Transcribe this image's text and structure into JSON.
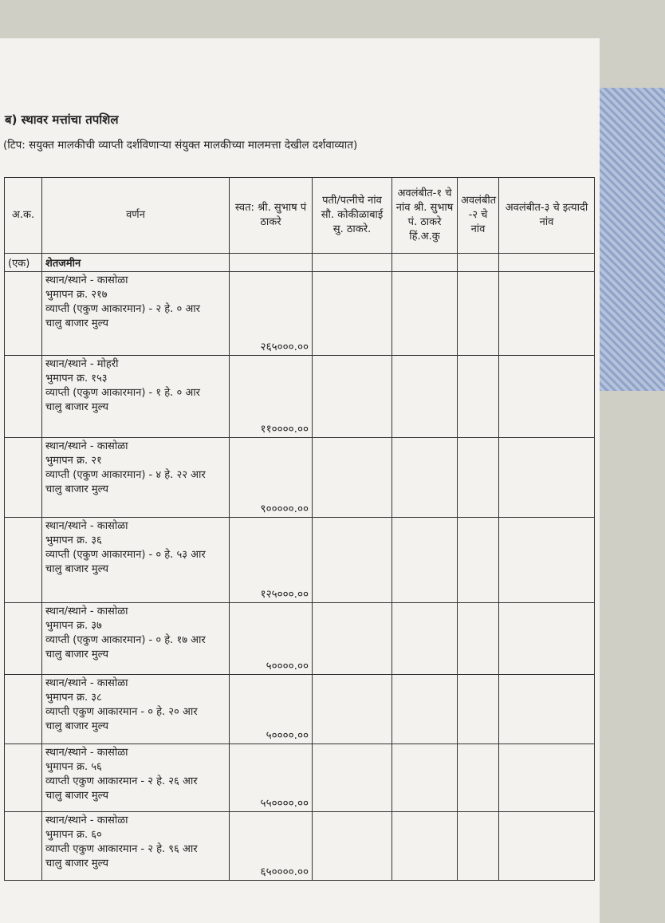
{
  "header": {
    "marker": "ब)",
    "title": "स्थावर मत्तांचा तपशिल",
    "note": "(टिप: सयुक्त मालकीची व्याप्ती दर्शविणाऱ्या संयुक्त मालकीच्या मालमत्ता देखील दर्शवाव्यात)"
  },
  "table": {
    "columns": [
      "अ.क.",
      "वर्णन",
      "स्वत: श्री. सुभाष पं ठाकरे",
      "पती/पत्नीचे नांव सौ. कोकीळाबाई सु. ठाकरे.",
      "अवलंबीत-१ चे नांव श्री. सुभाष पं. ठाकरे हिं.अ.कु",
      "अवलंबीत -२ चे नांव",
      "अवलंबीत-३ चे इत्यादी नांव"
    ],
    "section": {
      "number": "(एक)",
      "name": "शेतजमीन"
    },
    "rows": [
      {
        "lines": [
          "स्थान/स्थाने - कासोळा",
          "भुमापन क्र. २१७",
          "व्याप्ती (एकुण आकारमान) - २ हे. ० आर",
          "चालु बाजार मुल्य"
        ],
        "value": "२६५०००.००"
      },
      {
        "lines": [
          "स्थान/स्थाने - मोहरी",
          "भुमापन क्र. १५३",
          "व्याप्ती (एकुण आकारमान) - १ हे. ० आर",
          "चालु बाजार मुल्य"
        ],
        "value": "११००००.००"
      },
      {
        "lines": [
          "स्थान/स्थाने - कासोळा",
          "भुमापन क्र. २१",
          "व्याप्ती (एकुण आकारमान) - ४ हे. २२ आर",
          "चालु बाजार मुल्य"
        ],
        "value": "९०००००.००"
      },
      {
        "lines": [
          "स्थान/स्थाने - कासोळा",
          "भुमापन क्र. ३६",
          "व्याप्ती (एकुण आकारमान) - ० हे. ५३ आर",
          "चालु बाजार मुल्य"
        ],
        "value": "१२५०००.००"
      },
      {
        "lines": [
          "स्थान/स्थाने - कासोळा",
          "भुमापन क्र. ३७",
          "व्याप्ती (एकुण आकारमान) - ० हे. १७ आर",
          "चालु बाजार मुल्य"
        ],
        "value": "५००००.००"
      },
      {
        "lines": [
          "स्थान/स्थाने - कासोळा",
          "भुमापन क्र. ३८",
          "व्याप्ती एकुण आकारमान - ० हे. २० आर",
          "चालु बाजार मुल्य"
        ],
        "value": "५००००.००"
      },
      {
        "lines": [
          "स्थान/स्थाने - कासोळा",
          "भुमापन क्र. ५६",
          "व्याप्ती एकुण आकारमान - २ हे. २६ आर",
          "चालु बाजार मुल्य"
        ],
        "value": "५५००००.००"
      },
      {
        "lines": [
          "स्थान/स्थाने - कासोळा",
          "भुमापन क्र. ६०",
          "व्याप्ती एकुण आकारमान - २ हे. ९६ आर",
          "चालु बाजार मुल्य"
        ],
        "value": "६५००००.००"
      }
    ]
  }
}
